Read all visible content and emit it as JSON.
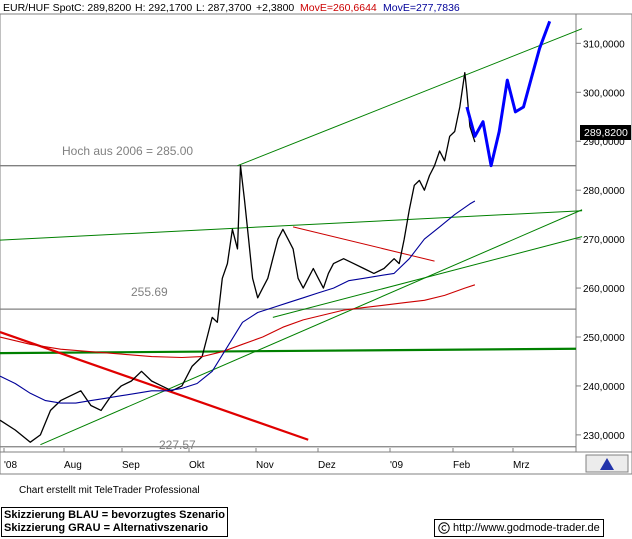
{
  "header": {
    "instrument": "EUR/HUF Spot",
    "close": "C: 289,8200",
    "high": "H: 292,1700",
    "low": "L: 287,3700",
    "change": "+2,3800",
    "ma_red": "MovE=260,6644",
    "ma_blue": "MovE=277,7836"
  },
  "price_badge": "289,8200",
  "annotations": {
    "hoch": "Hoch aus 2006 = 285.00",
    "level_mid": "255.69",
    "level_low": "227.57"
  },
  "footer": {
    "credit": "Chart erstellt mit TeleTrader Professional",
    "legend_blue": "Skizzierung BLAU = bevorzugtes Szenario",
    "legend_grey": "Skizzierung GRAU = Alternativszenario",
    "url": "http://www.godmode-trader.de"
  },
  "colors": {
    "price": "#000000",
    "ma_red": "#cc0000",
    "ma_blue": "#000099",
    "trend": "#008000",
    "level": "#808080",
    "scenario": "#0000ff",
    "downtrend": "#e00000"
  },
  "chart_data": {
    "type": "line",
    "x_ticks": [
      "'08",
      "Aug",
      "Sep",
      "Okt",
      "Nov",
      "Dez",
      "'09",
      "Feb",
      "Mrz"
    ],
    "y_ticks": [
      "230,0000",
      "240,0000",
      "250,0000",
      "260,0000",
      "270,0000",
      "280,0000",
      "290,0000",
      "300,0000",
      "310,0000"
    ],
    "ylim": [
      226.5,
      316
    ],
    "xlim": [
      0,
      570
    ],
    "series": [
      {
        "name": "EUR/HUF Spot",
        "x": [
          0,
          15,
          30,
          40,
          50,
          60,
          70,
          80,
          90,
          100,
          110,
          120,
          130,
          140,
          150,
          160,
          170,
          180,
          190,
          200,
          205,
          210,
          215,
          220,
          225,
          230,
          235,
          238,
          242,
          246,
          250,
          255,
          260,
          265,
          270,
          275,
          280,
          285,
          290,
          295,
          300,
          305,
          310,
          315,
          320,
          325,
          330,
          340,
          350,
          360,
          370,
          380,
          390,
          395,
          400,
          405,
          410,
          415,
          420,
          425,
          430,
          435,
          440,
          445,
          450,
          455,
          460,
          462,
          465,
          470
        ],
        "y": [
          233,
          231,
          228.5,
          230,
          235,
          237,
          238,
          239,
          236,
          235,
          238,
          240,
          241,
          243,
          241,
          240,
          239,
          240,
          244,
          246,
          250,
          254,
          253,
          262,
          265,
          272,
          268,
          285,
          278,
          270,
          262,
          258,
          260,
          262,
          266,
          270,
          272,
          270,
          268,
          262,
          260,
          262,
          264,
          262,
          260,
          263,
          265,
          266,
          265,
          264,
          263,
          264,
          266,
          265,
          270,
          276,
          281,
          282,
          280,
          283,
          285,
          288,
          286,
          291,
          292,
          297,
          304,
          300,
          293,
          289.82
        ]
      },
      {
        "name": "MovE=260,6644",
        "x": [
          0,
          30,
          60,
          90,
          120,
          150,
          180,
          200,
          220,
          240,
          260,
          280,
          300,
          320,
          340,
          360,
          380,
          400,
          420,
          440,
          460,
          470
        ],
        "y": [
          250,
          248.5,
          247.5,
          247,
          246.5,
          246,
          245.8,
          246,
          247,
          248.5,
          250,
          252,
          253.5,
          254.5,
          255.5,
          256,
          256.5,
          257,
          257.5,
          258.5,
          260,
          260.66
        ]
      },
      {
        "name": "MovE=277,7836",
        "x": [
          0,
          15,
          30,
          45,
          60,
          75,
          90,
          105,
          120,
          135,
          150,
          165,
          180,
          195,
          210,
          225,
          240,
          255,
          270,
          285,
          300,
          315,
          330,
          345,
          360,
          375,
          390,
          405,
          420,
          435,
          450,
          465,
          470
        ],
        "y": [
          242,
          240.5,
          238.5,
          237,
          236.5,
          236.5,
          237,
          237.5,
          238,
          238.5,
          239,
          239,
          239.5,
          240.5,
          243,
          248,
          253,
          255,
          256,
          257,
          258,
          259,
          260,
          261.5,
          262,
          262.5,
          263,
          266,
          270,
          272.5,
          275,
          277.2,
          277.78
        ]
      },
      {
        "name": "",
        "x": [
          462,
          470,
          478,
          486,
          494,
          502,
          510,
          518,
          526,
          534,
          544
        ],
        "y": [
          297,
          291,
          294,
          285,
          292,
          302.5,
          296,
          297,
          303,
          309,
          314.5
        ]
      }
    ],
    "grid": false,
    "legend": "top-left"
  }
}
